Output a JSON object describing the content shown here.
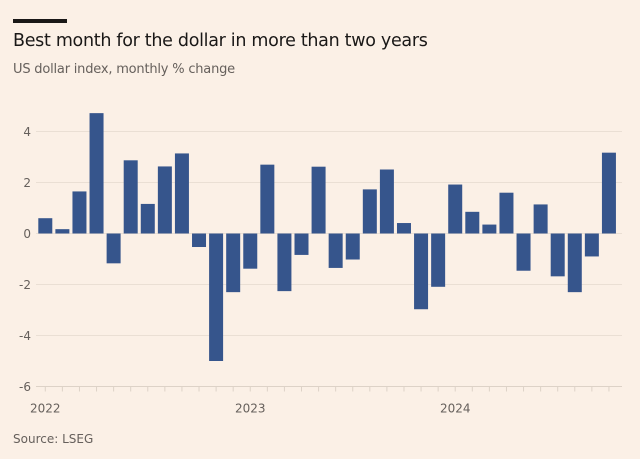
{
  "header": {
    "title": "Best month for the dollar in more than two years",
    "subtitle": "US dollar index, monthly % change"
  },
  "footer": {
    "source": "Source: LSEG"
  },
  "colors": {
    "background": "#fbf0e6",
    "bar": "#36558c",
    "grid": "#eadfd4",
    "axis_text": "#66605c",
    "title_text": "#1a1817"
  },
  "chart_data": {
    "type": "bar",
    "title": "Best month for the dollar in more than two years",
    "subtitle": "US dollar index, monthly % change",
    "xlabel": "",
    "ylabel": "",
    "ylim": [
      -6,
      5
    ],
    "yticks": [
      4,
      2,
      0,
      -2,
      -4,
      -6
    ],
    "ytick_labels": [
      "4",
      "2",
      "0",
      "-2",
      "-4",
      "-6"
    ],
    "grid": true,
    "legend": "none",
    "x_tick_labels": [
      {
        "label": "2022",
        "index": 0
      },
      {
        "label": "2023",
        "index": 12
      },
      {
        "label": "2024",
        "index": 24
      }
    ],
    "categories": [
      "2022-01",
      "2022-02",
      "2022-03",
      "2022-04",
      "2022-05",
      "2022-06",
      "2022-07",
      "2022-08",
      "2022-09",
      "2022-10",
      "2022-11",
      "2022-12",
      "2023-01",
      "2023-02",
      "2023-03",
      "2023-04",
      "2023-05",
      "2023-06",
      "2023-07",
      "2023-08",
      "2023-09",
      "2023-10",
      "2023-11",
      "2023-12",
      "2024-01",
      "2024-02",
      "2024-03",
      "2024-04",
      "2024-05",
      "2024-06",
      "2024-07",
      "2024-08",
      "2024-09",
      "2024-10"
    ],
    "values": [
      0.6,
      0.17,
      1.65,
      4.72,
      -1.17,
      2.87,
      1.16,
      2.63,
      3.14,
      -0.53,
      -5.0,
      -2.3,
      -1.38,
      2.7,
      -2.26,
      -0.84,
      2.62,
      -1.35,
      -1.02,
      1.73,
      2.51,
      0.41,
      -2.97,
      -2.09,
      1.92,
      0.85,
      0.35,
      1.6,
      -1.46,
      1.14,
      -1.68,
      -2.3,
      -0.9,
      3.17
    ],
    "source": "Source: LSEG"
  }
}
